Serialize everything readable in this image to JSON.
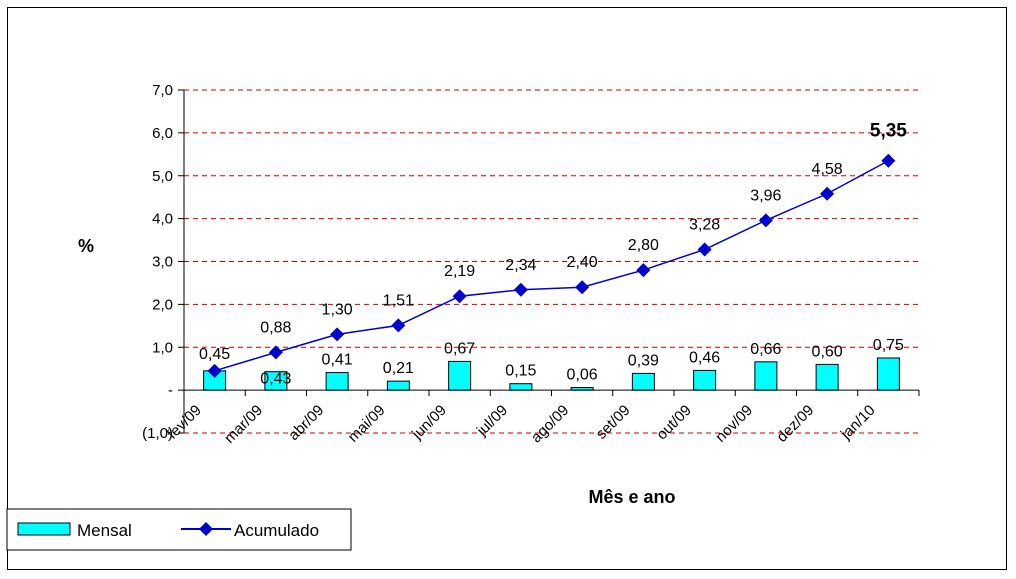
{
  "chart_data": {
    "type": "bar",
    "categories": [
      "fev/09",
      "mar/09",
      "abr/09",
      "mai/09",
      "jun/09",
      "jul/09",
      "ago/09",
      "set/09",
      "out/09",
      "nov/09",
      "dez/09",
      "jan/10"
    ],
    "series": [
      {
        "name": "Mensal",
        "kind": "bar",
        "values": [
          0.45,
          0.43,
          0.41,
          0.21,
          0.67,
          0.15,
          0.06,
          0.39,
          0.46,
          0.66,
          0.6,
          0.75
        ],
        "labels": [
          "0,45",
          "0,43",
          "0,41",
          "0,21",
          "0,67",
          "0,15",
          "0,06",
          "0,39",
          "0,46",
          "0,66",
          "0,60",
          "0,75"
        ],
        "color": "#00ffff"
      },
      {
        "name": "Acumulado",
        "kind": "line",
        "values": [
          0.45,
          0.88,
          1.3,
          1.51,
          2.19,
          2.34,
          2.4,
          2.8,
          3.28,
          3.96,
          4.58,
          5.35
        ],
        "labels": [
          "0,45",
          "0,88",
          "1,30",
          "1,51",
          "2,19",
          "2,34",
          "2,40",
          "2,80",
          "3,28",
          "3,96",
          "4,58",
          "5,35"
        ],
        "color": "#0000cc"
      }
    ],
    "ylabel": "%",
    "xlabel": "Mês e ano",
    "ylim": [
      -1.0,
      7.0
    ],
    "yticks": [
      -1.0,
      0,
      1.0,
      2.0,
      3.0,
      4.0,
      5.0,
      6.0,
      7.0
    ],
    "ytick_labels": [
      "(1,0)",
      "-",
      "1,0",
      "2,0",
      "3,0",
      "4,0",
      "5,0",
      "6,0",
      "7,0"
    ],
    "grid": true,
    "grid_color": "#cc0000",
    "legend_position": "bottom-left"
  }
}
